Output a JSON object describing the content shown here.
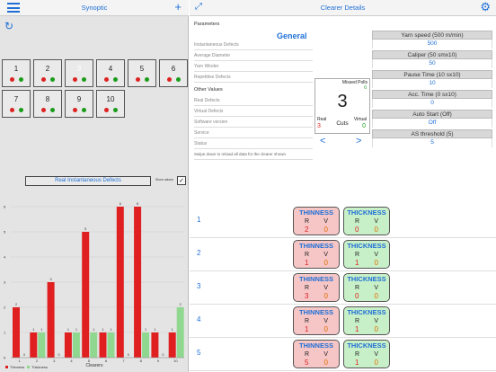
{
  "left": {
    "title": "Synoptic",
    "plus_icon": "+",
    "refresh_icon": "↻",
    "clearers": [
      {
        "n": "1",
        "dots": [
          "#d22",
          "#1a9c1a"
        ],
        "color": "#222"
      },
      {
        "n": "2",
        "dots": [
          "#d22",
          "#1a9c1a"
        ],
        "color": "#222"
      },
      {
        "n": "3",
        "dots": [
          "#d22",
          "#1a9c1a"
        ],
        "color": "#ffffff"
      },
      {
        "n": "4",
        "dots": [
          "#d22",
          "#1a9c1a"
        ],
        "color": "#222"
      },
      {
        "n": "5",
        "dots": [
          "#d22",
          "#1a9c1a"
        ],
        "color": "#222"
      },
      {
        "n": "6",
        "dots": [
          "#d22",
          "#1a9c1a"
        ],
        "color": "#222"
      },
      {
        "n": "7",
        "dots": [
          "#d22",
          "#1a9c1a"
        ],
        "color": "#222"
      },
      {
        "n": "8",
        "dots": [
          "#d22",
          "#1a9c1a"
        ],
        "color": "#222"
      },
      {
        "n": "9",
        "dots": [
          "#d22",
          "#1a9c1a"
        ],
        "color": "#222"
      },
      {
        "n": "10",
        "dots": [
          "#d22",
          "#1a9c1a"
        ],
        "color": "#222"
      }
    ],
    "chart_title": "Real Instantaneous Defects",
    "show_values": "Show values",
    "checkbox_mark": "✓"
  },
  "chart_data": {
    "type": "bar",
    "title": "Real Instantaneous Defects",
    "xlabel": "Clearers",
    "ylim": [
      0,
      6
    ],
    "y_ticks": [
      "0",
      "1",
      "2",
      "3",
      "4",
      "5",
      "6"
    ],
    "categories": [
      "1",
      "2",
      "3",
      "4",
      "5",
      "6",
      "7",
      "8",
      "9",
      "10"
    ],
    "series": [
      {
        "name": "Thinness",
        "color": "#e02020",
        "values": [
          2,
          1,
          3,
          1,
          5,
          1,
          6,
          6,
          1,
          1
        ]
      },
      {
        "name": "Thickness",
        "color": "#90d890",
        "values": [
          0,
          1,
          0,
          1,
          1,
          1,
          0,
          1,
          0,
          2
        ]
      }
    ],
    "legend": "bottom-left"
  },
  "right": {
    "title": "Clearer Details",
    "expand_icon": "⤢",
    "gear_icon": "⚙",
    "params_header": "Parameters",
    "general": "General",
    "params": [
      "Instantaneous Defects",
      "Average Diameter",
      "Yarn Winder",
      "Repetitive Defects"
    ],
    "other_header": "Other Values",
    "other": [
      "Real Defects",
      "Virtual Defects",
      "Software version",
      "Service",
      "Status"
    ],
    "hint": "Swipe down to reload all data for the clearer shown",
    "cuts": {
      "missed_label": "Missed Polls",
      "missed_value": "0",
      "value": "3",
      "label": "Cuts",
      "real_label": "Real",
      "real_value": "3",
      "virtual_label": "Virtual",
      "virtual_value": "0"
    },
    "prev": "<",
    "next": ">",
    "settings": [
      {
        "label": "Yarn speed (500 m/min)",
        "value": "500"
      },
      {
        "label": "Caliper (50 smx10)",
        "value": "50"
      },
      {
        "label": "Pause Time (10 sx10)",
        "value": "10"
      },
      {
        "label": "Acc. Time (0 sx10)",
        "value": "0"
      },
      {
        "label": "Auto Start (Off)",
        "value": "Off"
      },
      {
        "label": "AS threshold (5)",
        "value": "5"
      }
    ],
    "rows": [
      {
        "n": "1",
        "thin": [
          "2",
          "0"
        ],
        "thick": [
          "0",
          "0"
        ]
      },
      {
        "n": "2",
        "thin": [
          "1",
          "0"
        ],
        "thick": [
          "1",
          "0"
        ]
      },
      {
        "n": "3",
        "thin": [
          "3",
          "0"
        ],
        "thick": [
          "0",
          "0"
        ]
      },
      {
        "n": "4",
        "thin": [
          "1",
          "0"
        ],
        "thick": [
          "1",
          "0"
        ]
      },
      {
        "n": "5",
        "thin": [
          "5",
          "0"
        ],
        "thick": [
          "1",
          "0"
        ]
      }
    ],
    "thin_label": "THINNESS",
    "thick_label": "THICKNESS",
    "r": "R",
    "v": "V"
  }
}
